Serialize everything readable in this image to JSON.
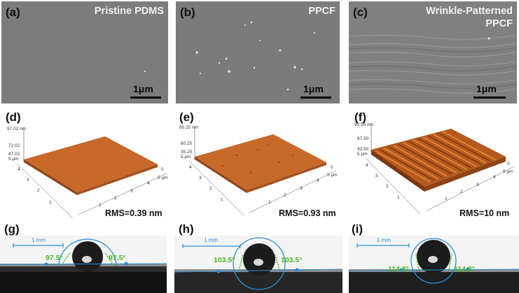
{
  "figure": {
    "sem_panels": [
      {
        "label": "(a)",
        "title_lines": [
          "Pristine PDMS"
        ],
        "scale": "1μm"
      },
      {
        "label": "(b)",
        "title_lines": [
          "PPCF"
        ],
        "scale": "1μm"
      },
      {
        "label": "(c)",
        "title_lines": [
          "Wrinkle-Patterned",
          "PPCF"
        ],
        "scale": "1μm"
      }
    ],
    "afm_panels": [
      {
        "label": "(d)",
        "rms": "RMS=0.39 nm",
        "z_max": "97.02 nm",
        "z_mid": "72.02",
        "z_low": "47.02",
        "x_unit": "5 μm",
        "y_unit": "5 μm",
        "color": "#c8682a"
      },
      {
        "label": "(e)",
        "rms": "RMS=0.93 nm",
        "z_max": "85.25 nm",
        "z_mid": "60.25",
        "z_low": "35.25",
        "x_unit": "5 μm",
        "y_unit": "5 μm",
        "color": "#c66a2c"
      },
      {
        "label": "(f)",
        "rms": "RMS=10 nm",
        "z_max": "92.50 nm",
        "z_mid": "67.50",
        "z_low": "42.50",
        "x_unit": "5 μm",
        "y_unit": "5 μm",
        "color": "#b55a1c"
      }
    ],
    "afm_axis_ticks": [
      "0",
      "1",
      "2",
      "3",
      "4",
      "5"
    ],
    "contact_angle_panels": [
      {
        "label": "(g)",
        "scale": "1 mm",
        "angle_left": "97.5°",
        "angle_right": "97.5°"
      },
      {
        "label": "(h)",
        "scale": "1 mm",
        "angle_left": "103.5°",
        "angle_right": "103.5°"
      },
      {
        "label": "(i)",
        "scale": "1 mm",
        "angle_left": "114.8°",
        "angle_right": "114.8°"
      }
    ],
    "colors": {
      "sem_gray": "#7d7d7d",
      "afm_orange": "#c8682a",
      "angle_green": "#49b61e",
      "fit_blue": "#2a8fd8"
    }
  }
}
